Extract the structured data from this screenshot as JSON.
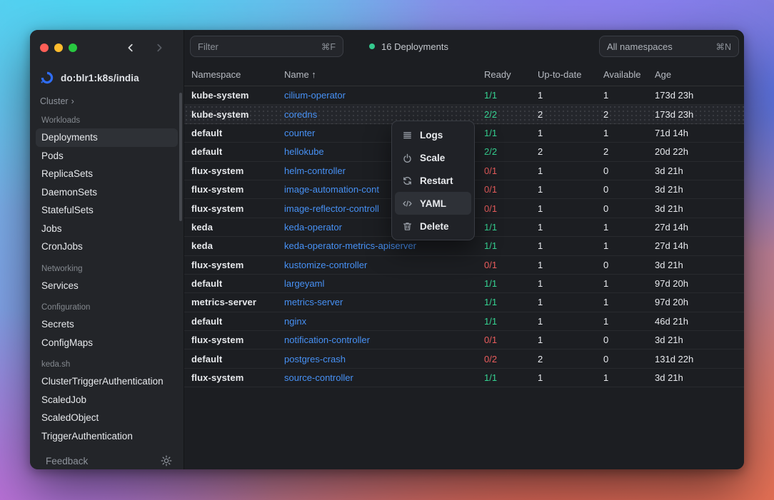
{
  "colors": {
    "traffic_red": "#ff5f57",
    "traffic_yellow": "#febc2e",
    "traffic_green": "#28c840",
    "accent_blue": "#4791f5",
    "ready_ok_green": "#35d392",
    "ready_fail_red": "#ea5d5d",
    "status_dot_green": "#34c98e",
    "do_logo_blue": "#2f6df5"
  },
  "sidebar": {
    "cluster_name": "do:blr1:k8s/india",
    "cluster_label": "Cluster",
    "cluster_chevron": "›",
    "selected_item": "Deployments",
    "sections": [
      {
        "label": "Workloads",
        "items": [
          "Deployments",
          "Pods",
          "ReplicaSets",
          "DaemonSets",
          "StatefulSets",
          "Jobs",
          "CronJobs"
        ]
      },
      {
        "label": "Networking",
        "items": [
          "Services"
        ]
      },
      {
        "label": "Configuration",
        "items": [
          "Secrets",
          "ConfigMaps"
        ]
      },
      {
        "label": "keda.sh",
        "items": [
          "ClusterTriggerAuthentication",
          "ScaledJob",
          "ScaledObject",
          "TriggerAuthentication"
        ]
      }
    ],
    "feedback_label": "Feedback"
  },
  "toolbar": {
    "filter_placeholder": "Filter",
    "filter_shortcut": "⌘F",
    "status_text": "16 Deployments",
    "namespace_selector_label": "All namespaces",
    "namespace_shortcut": "⌘N"
  },
  "table": {
    "columns": [
      "Namespace",
      "Name",
      "Ready",
      "Up-to-date",
      "Available",
      "Age"
    ],
    "sort_column": "Name",
    "sort_indicator": "↑",
    "rows": [
      {
        "namespace": "kube-system",
        "name": "cilium-operator",
        "ready": "1/1",
        "up_to_date": "1",
        "available": "1",
        "age": "173d 23h",
        "selected": false
      },
      {
        "namespace": "kube-system",
        "name": "coredns",
        "ready": "2/2",
        "up_to_date": "2",
        "available": "2",
        "age": "173d 23h",
        "selected": true
      },
      {
        "namespace": "default",
        "name": "counter",
        "ready": "1/1",
        "up_to_date": "1",
        "available": "1",
        "age": "71d 14h",
        "selected": false
      },
      {
        "namespace": "default",
        "name": "hellokube",
        "ready": "2/2",
        "up_to_date": "2",
        "available": "2",
        "age": "20d 22h",
        "selected": false
      },
      {
        "namespace": "flux-system",
        "name": "helm-controller",
        "ready": "0/1",
        "up_to_date": "1",
        "available": "0",
        "age": "3d 21h",
        "selected": false
      },
      {
        "namespace": "flux-system",
        "name": "image-automation-cont",
        "ready": "0/1",
        "up_to_date": "1",
        "available": "0",
        "age": "3d 21h",
        "selected": false
      },
      {
        "namespace": "flux-system",
        "name": "image-reflector-controll",
        "ready": "0/1",
        "up_to_date": "1",
        "available": "0",
        "age": "3d 21h",
        "selected": false
      },
      {
        "namespace": "keda",
        "name": "keda-operator",
        "ready": "1/1",
        "up_to_date": "1",
        "available": "1",
        "age": "27d 14h",
        "selected": false
      },
      {
        "namespace": "keda",
        "name": "keda-operator-metrics-apiserver",
        "ready": "1/1",
        "up_to_date": "1",
        "available": "1",
        "age": "27d 14h",
        "selected": false
      },
      {
        "namespace": "flux-system",
        "name": "kustomize-controller",
        "ready": "0/1",
        "up_to_date": "1",
        "available": "0",
        "age": "3d 21h",
        "selected": false
      },
      {
        "namespace": "default",
        "name": "largeyaml",
        "ready": "1/1",
        "up_to_date": "1",
        "available": "1",
        "age": "97d 20h",
        "selected": false
      },
      {
        "namespace": "metrics-server",
        "name": "metrics-server",
        "ready": "1/1",
        "up_to_date": "1",
        "available": "1",
        "age": "97d 20h",
        "selected": false
      },
      {
        "namespace": "default",
        "name": "nginx",
        "ready": "1/1",
        "up_to_date": "1",
        "available": "1",
        "age": "46d 21h",
        "selected": false
      },
      {
        "namespace": "flux-system",
        "name": "notification-controller",
        "ready": "0/1",
        "up_to_date": "1",
        "available": "0",
        "age": "3d 21h",
        "selected": false
      },
      {
        "namespace": "default",
        "name": "postgres-crash",
        "ready": "0/2",
        "up_to_date": "2",
        "available": "0",
        "age": "131d 22h",
        "selected": false
      },
      {
        "namespace": "flux-system",
        "name": "source-controller",
        "ready": "1/1",
        "up_to_date": "1",
        "available": "1",
        "age": "3d 21h",
        "selected": false
      }
    ]
  },
  "context_menu": {
    "items": [
      {
        "label": "Logs",
        "icon": "logs-icon",
        "highlighted": false
      },
      {
        "label": "Scale",
        "icon": "scale-icon",
        "highlighted": false
      },
      {
        "label": "Restart",
        "icon": "restart-icon",
        "highlighted": false
      },
      {
        "label": "YAML",
        "icon": "yaml-icon",
        "highlighted": true
      },
      {
        "label": "Delete",
        "icon": "trash-icon",
        "highlighted": false
      }
    ]
  }
}
